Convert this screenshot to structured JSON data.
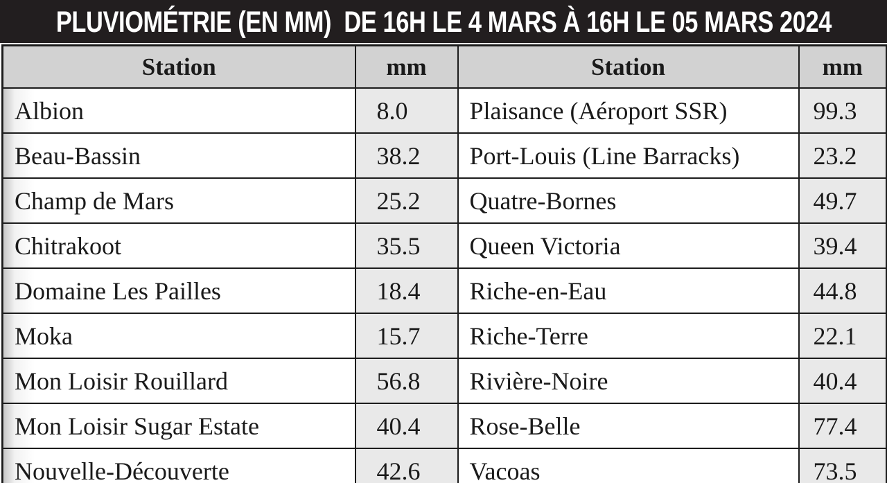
{
  "title": "PLUVIOMÉTRIE (EN MM)  DE 16H LE 4 MARS À 16H LE 05 MARS 2024",
  "table": {
    "headers": [
      "Station",
      "mm",
      "Station",
      "mm"
    ],
    "rows": [
      [
        "Albion",
        "8.0",
        "Plaisance (Aéroport SSR)",
        "99.3"
      ],
      [
        "Beau-Bassin",
        "38.2",
        "Port-Louis (Line Barracks)",
        "23.2"
      ],
      [
        "Champ de Mars",
        "25.2",
        "Quatre-Bornes",
        "49.7"
      ],
      [
        "Chitrakoot",
        "35.5",
        "Queen Victoria",
        "39.4"
      ],
      [
        "Domaine Les Pailles",
        "18.4",
        "Riche-en-Eau",
        "44.8"
      ],
      [
        "Moka",
        "15.7",
        "Riche-Terre",
        "22.1"
      ],
      [
        "Mon Loisir Rouillard",
        "56.8",
        "Rivière-Noire",
        "40.4"
      ],
      [
        "Mon Loisir Sugar Estate",
        "40.4",
        "Rose-Belle",
        "77.4"
      ],
      [
        "Nouvelle-Découverte",
        "42.6",
        "Vacoas",
        "73.5"
      ]
    ]
  },
  "colors": {
    "page_bg": "#ffffff",
    "title_bar_bg": "#221e1f",
    "title_text": "#ffffff",
    "header_bg": "#d2d2d2",
    "value_bg": "#e9e9e9",
    "border": "#1c1c1c",
    "text": "#1a1a1a"
  }
}
